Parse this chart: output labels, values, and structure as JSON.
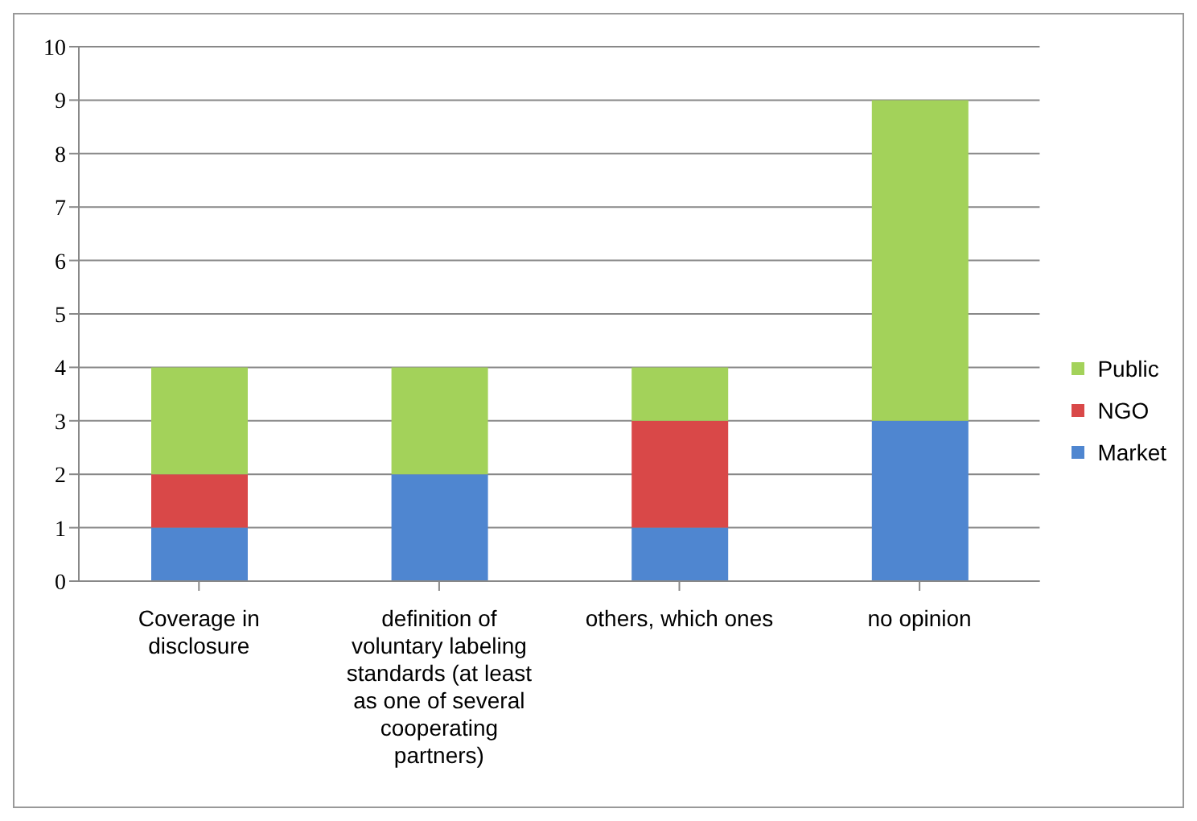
{
  "chart_data": {
    "type": "bar",
    "stacked": true,
    "categories": [
      "Coverage in disclosure",
      "definition of voluntary labeling standards (at least as one of several cooperating partners)",
      "others, which ones",
      "no opinion"
    ],
    "series": [
      {
        "name": "Market",
        "color": "#4f86d0",
        "values": [
          1,
          2,
          1,
          3
        ]
      },
      {
        "name": "NGO",
        "color": "#d94848",
        "values": [
          1,
          0,
          2,
          0
        ]
      },
      {
        "name": "Public",
        "color": "#a3d25a",
        "values": [
          2,
          2,
          1,
          6
        ]
      }
    ],
    "ylim": [
      0,
      10
    ],
    "yticks": [
      0,
      1,
      2,
      3,
      4,
      5,
      6,
      7,
      8,
      9,
      10
    ],
    "grid": "y",
    "legend": "right"
  }
}
